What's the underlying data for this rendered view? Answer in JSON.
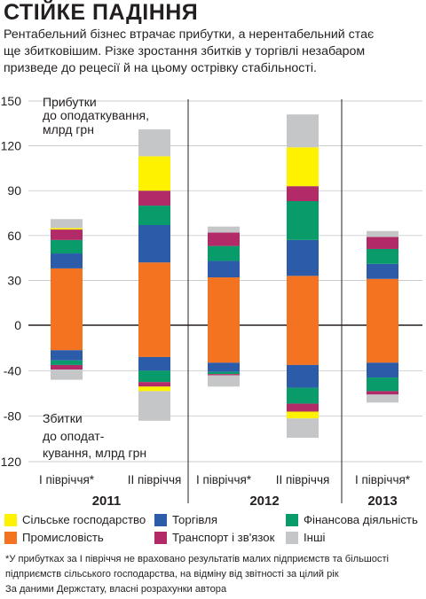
{
  "header": {
    "title": "СТІЙКЕ ПАДІННЯ",
    "subtitle_lines": [
      "Рентабельний бізнес втрачає прибутки, а нерентабельний стає",
      "ще збитковішим. Різке зростання збитків у торгівлі незабаром",
      "призведе до рецесії й на цьому острівку стабільності."
    ]
  },
  "chart_data": {
    "type": "bar",
    "stacked": true,
    "diverging": true,
    "annotation_top": [
      "Прибутки",
      "до оподаткування,",
      "млрд грн"
    ],
    "annotation_bottom": [
      "Збитки",
      "до оподат-",
      "кування, млрд грн"
    ],
    "ylim": [
      -120,
      150
    ],
    "yticks": [
      150,
      120,
      90,
      60,
      30,
      0,
      -40,
      -80,
      -120
    ],
    "grid": true,
    "legend_position": "bottom",
    "categories": [
      "I півріччя*",
      "II півріччя",
      "I півріччя*",
      "II півріччя",
      "I півріччя*"
    ],
    "years": [
      "2011",
      "2011",
      "2012",
      "2012",
      "2013"
    ],
    "year_labels": [
      "2011",
      "2012",
      "2013"
    ],
    "series": [
      {
        "name": "Промисловість",
        "color": "#f37321",
        "profit": [
          38,
          42,
          32,
          33,
          31
        ],
        "loss": [
          -22,
          -28,
          -33,
          -35,
          -33
        ]
      },
      {
        "name": "Торгівля",
        "color": "#2b5ba9",
        "profit": [
          10,
          25,
          11,
          24,
          10
        ],
        "loss": [
          -9,
          -12,
          -8,
          -20,
          -13
        ]
      },
      {
        "name": "Фінансова діяльність",
        "color": "#0a9b6b",
        "profit": [
          9,
          13,
          10,
          26,
          10
        ],
        "loss": [
          -4,
          -10,
          -2,
          -14,
          -12
        ]
      },
      {
        "name": "Транспорт і зв'язок",
        "color": "#b22a67",
        "profit": [
          7,
          10,
          9,
          10,
          8
        ],
        "loss": [
          -4,
          -4,
          -1,
          -7,
          -3
        ]
      },
      {
        "name": "Сільське господарство",
        "color": "#fff200",
        "profit": [
          1,
          23,
          0,
          26,
          0
        ],
        "loss": [
          0,
          -4,
          0,
          -6,
          0
        ]
      },
      {
        "name": "Інші",
        "color": "#c4c6c8",
        "profit": [
          6,
          18,
          4,
          22,
          4
        ],
        "loss": [
          -9,
          -26,
          -10,
          -17,
          -7
        ]
      }
    ]
  },
  "legend_items": [
    {
      "name": "Сільське господарство",
      "color": "#fff200"
    },
    {
      "name": "Торгівля",
      "color": "#2b5ba9"
    },
    {
      "name": "Фінансова діяльність",
      "color": "#0a9b6b"
    },
    {
      "name": "Промисловість",
      "color": "#f37321"
    },
    {
      "name": "Транспорт і зв'язок",
      "color": "#b22a67"
    },
    {
      "name": "Інші",
      "color": "#c4c6c8"
    }
  ],
  "footnotes": [
    "*У прибутках за І півріччя не враховано результатів малих підприємств та більшості",
    "підприємств сільського господарства, на відміну від звітності за цілий рік",
    "За даними Держстату, власні розрахунки автора"
  ]
}
